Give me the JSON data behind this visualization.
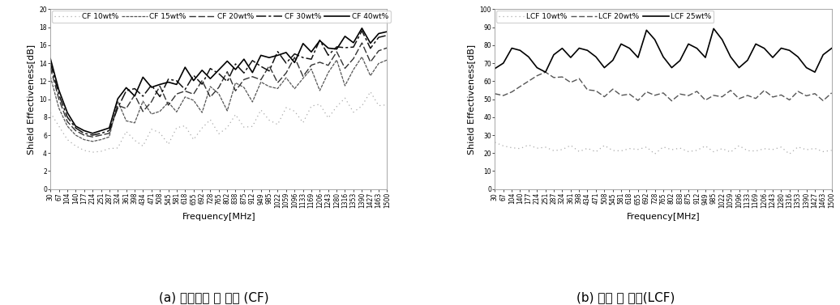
{
  "subplot_a_title": "(a) 압출공정 후 사출 (CF)",
  "subplot_b_title": "(b) 혼합 후 사출(LCF)",
  "cf_legend": [
    "CF 10wt%",
    "CF 15wt%",
    "CF 20wt%",
    "CF 30wt%",
    "CF 40wt%"
  ],
  "lcf_legend": [
    "LCF 10wt%",
    "LCF 20wt%",
    "LCF 25wt%"
  ],
  "xlabel": "Frequency[MHz]",
  "ylabel_cf": "Shield Effectiveness[dB]",
  "ylabel_lcf": "Shield Effectiveness[dB]",
  "cf_ylim": [
    0,
    20
  ],
  "lcf_ylim": [
    0,
    100
  ],
  "cf_yticks": [
    0,
    2,
    4,
    6,
    8,
    10,
    12,
    14,
    16,
    18,
    20
  ],
  "lcf_yticks": [
    0,
    10,
    20,
    30,
    40,
    50,
    60,
    70,
    80,
    90,
    100
  ],
  "freq_ticks": [
    30,
    67,
    104,
    140,
    177,
    214,
    251,
    287,
    324,
    361,
    398,
    434,
    471,
    508,
    545,
    581,
    618,
    655,
    692,
    728,
    765,
    802,
    838,
    875,
    912,
    949,
    985,
    1022,
    1059,
    1096,
    1133,
    1169,
    1206,
    1243,
    1280,
    1316,
    1353,
    1390,
    1427,
    1463,
    1500
  ],
  "background_color": "#ffffff",
  "axis_label_fontsize": 8,
  "tick_fontsize": 5.5,
  "legend_fontsize": 6.5,
  "caption_fontsize": 11
}
